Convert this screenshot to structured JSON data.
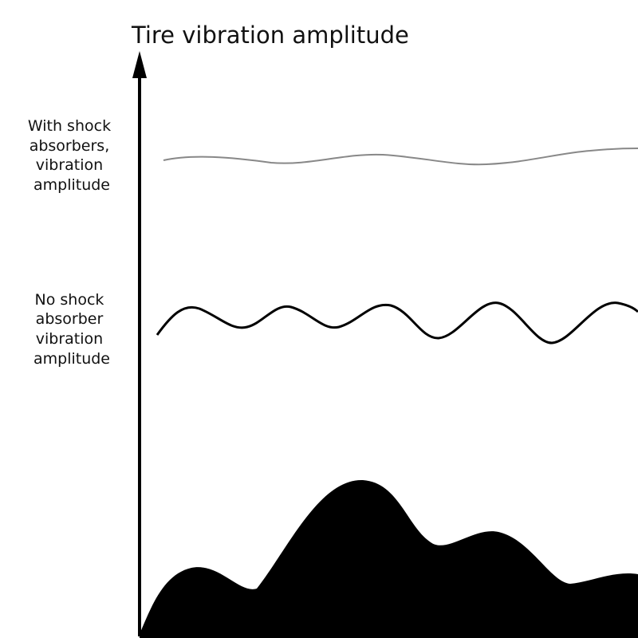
{
  "title": "Tire vibration amplitude",
  "labels": [
    {
      "lines": [
        "With shock",
        "absorbers,",
        "vibration",
        "amplitude"
      ]
    },
    {
      "lines": [
        "No shock",
        "absorber",
        "vibration",
        "amplitude"
      ]
    }
  ]
}
